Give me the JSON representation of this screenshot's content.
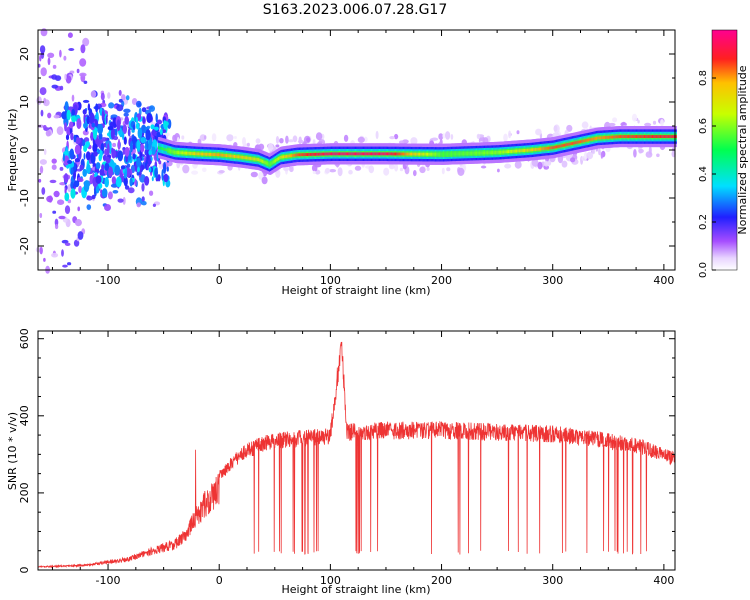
{
  "title": "S163.2023.006.07.28.G17",
  "colorbar": {
    "label": "Normalized spectral amplitude",
    "ticks": [
      "0.0",
      "0.2",
      "0.4",
      "0.6",
      "0.8"
    ],
    "tick_values": [
      0.0,
      0.2,
      0.4,
      0.6,
      0.8
    ],
    "range": [
      0.0,
      1.0
    ]
  },
  "chart_data": [
    {
      "type": "heatmap",
      "xlabel": "Height of straight line (km)",
      "ylabel": "Frequency (Hz)",
      "xlim": [
        -163,
        410
      ],
      "ylim": [
        -25,
        25
      ],
      "xticks": [
        -100,
        0,
        100,
        200,
        300,
        400
      ],
      "xtick_labels": [
        "-100",
        "0",
        "100",
        "200",
        "300",
        "400"
      ],
      "yticks": [
        -20,
        -10,
        0,
        10,
        20
      ],
      "ytick_labels": [
        "-20",
        "-10",
        "0",
        "10",
        "20"
      ],
      "ridge": {
        "x": [
          -55,
          -40,
          -20,
          0,
          20,
          35,
          45,
          55,
          70,
          100,
          150,
          200,
          250,
          280,
          300,
          320,
          340,
          360,
          410
        ],
        "frequency_hz": [
          0.5,
          -0.5,
          -0.8,
          -1.0,
          -1.5,
          -2.0,
          -3.0,
          -1.5,
          -1.0,
          -0.8,
          -0.8,
          -0.9,
          -0.5,
          0.0,
          0.5,
          1.5,
          2.5,
          2.8,
          2.8
        ],
        "amplitude": [
          0.5,
          0.6,
          0.75,
          0.8,
          0.75,
          0.7,
          0.55,
          0.7,
          0.85,
          0.95,
          0.95,
          0.55,
          0.6,
          0.75,
          0.85,
          0.85,
          0.8,
          0.85,
          0.9
        ]
      }
    },
    {
      "type": "line",
      "xlabel": "Height of straight line (km)",
      "ylabel": "SNR (10 * v/v)",
      "xlim": [
        -163,
        410
      ],
      "ylim": [
        0,
        620
      ],
      "xticks": [
        -100,
        0,
        100,
        200,
        300,
        400
      ],
      "xtick_labels": [
        "-100",
        "0",
        "100",
        "200",
        "300",
        "400"
      ],
      "yticks": [
        0,
        200,
        400,
        600
      ],
      "ytick_labels": [
        "0",
        "200",
        "400",
        "600"
      ],
      "color": "#ee3333",
      "envelope": {
        "x": [
          -163,
          -120,
          -80,
          -60,
          -40,
          -30,
          -20,
          -10,
          0,
          20,
          40,
          60,
          80,
          100,
          105,
          110,
          115,
          150,
          200,
          250,
          300,
          340,
          380,
          410
        ],
        "snr": [
          10,
          15,
          35,
          60,
          80,
          110,
          170,
          220,
          260,
          320,
          350,
          360,
          365,
          370,
          500,
          620,
          380,
          385,
          385,
          380,
          375,
          360,
          340,
          305
        ]
      },
      "dropout_floor": 40
    }
  ]
}
